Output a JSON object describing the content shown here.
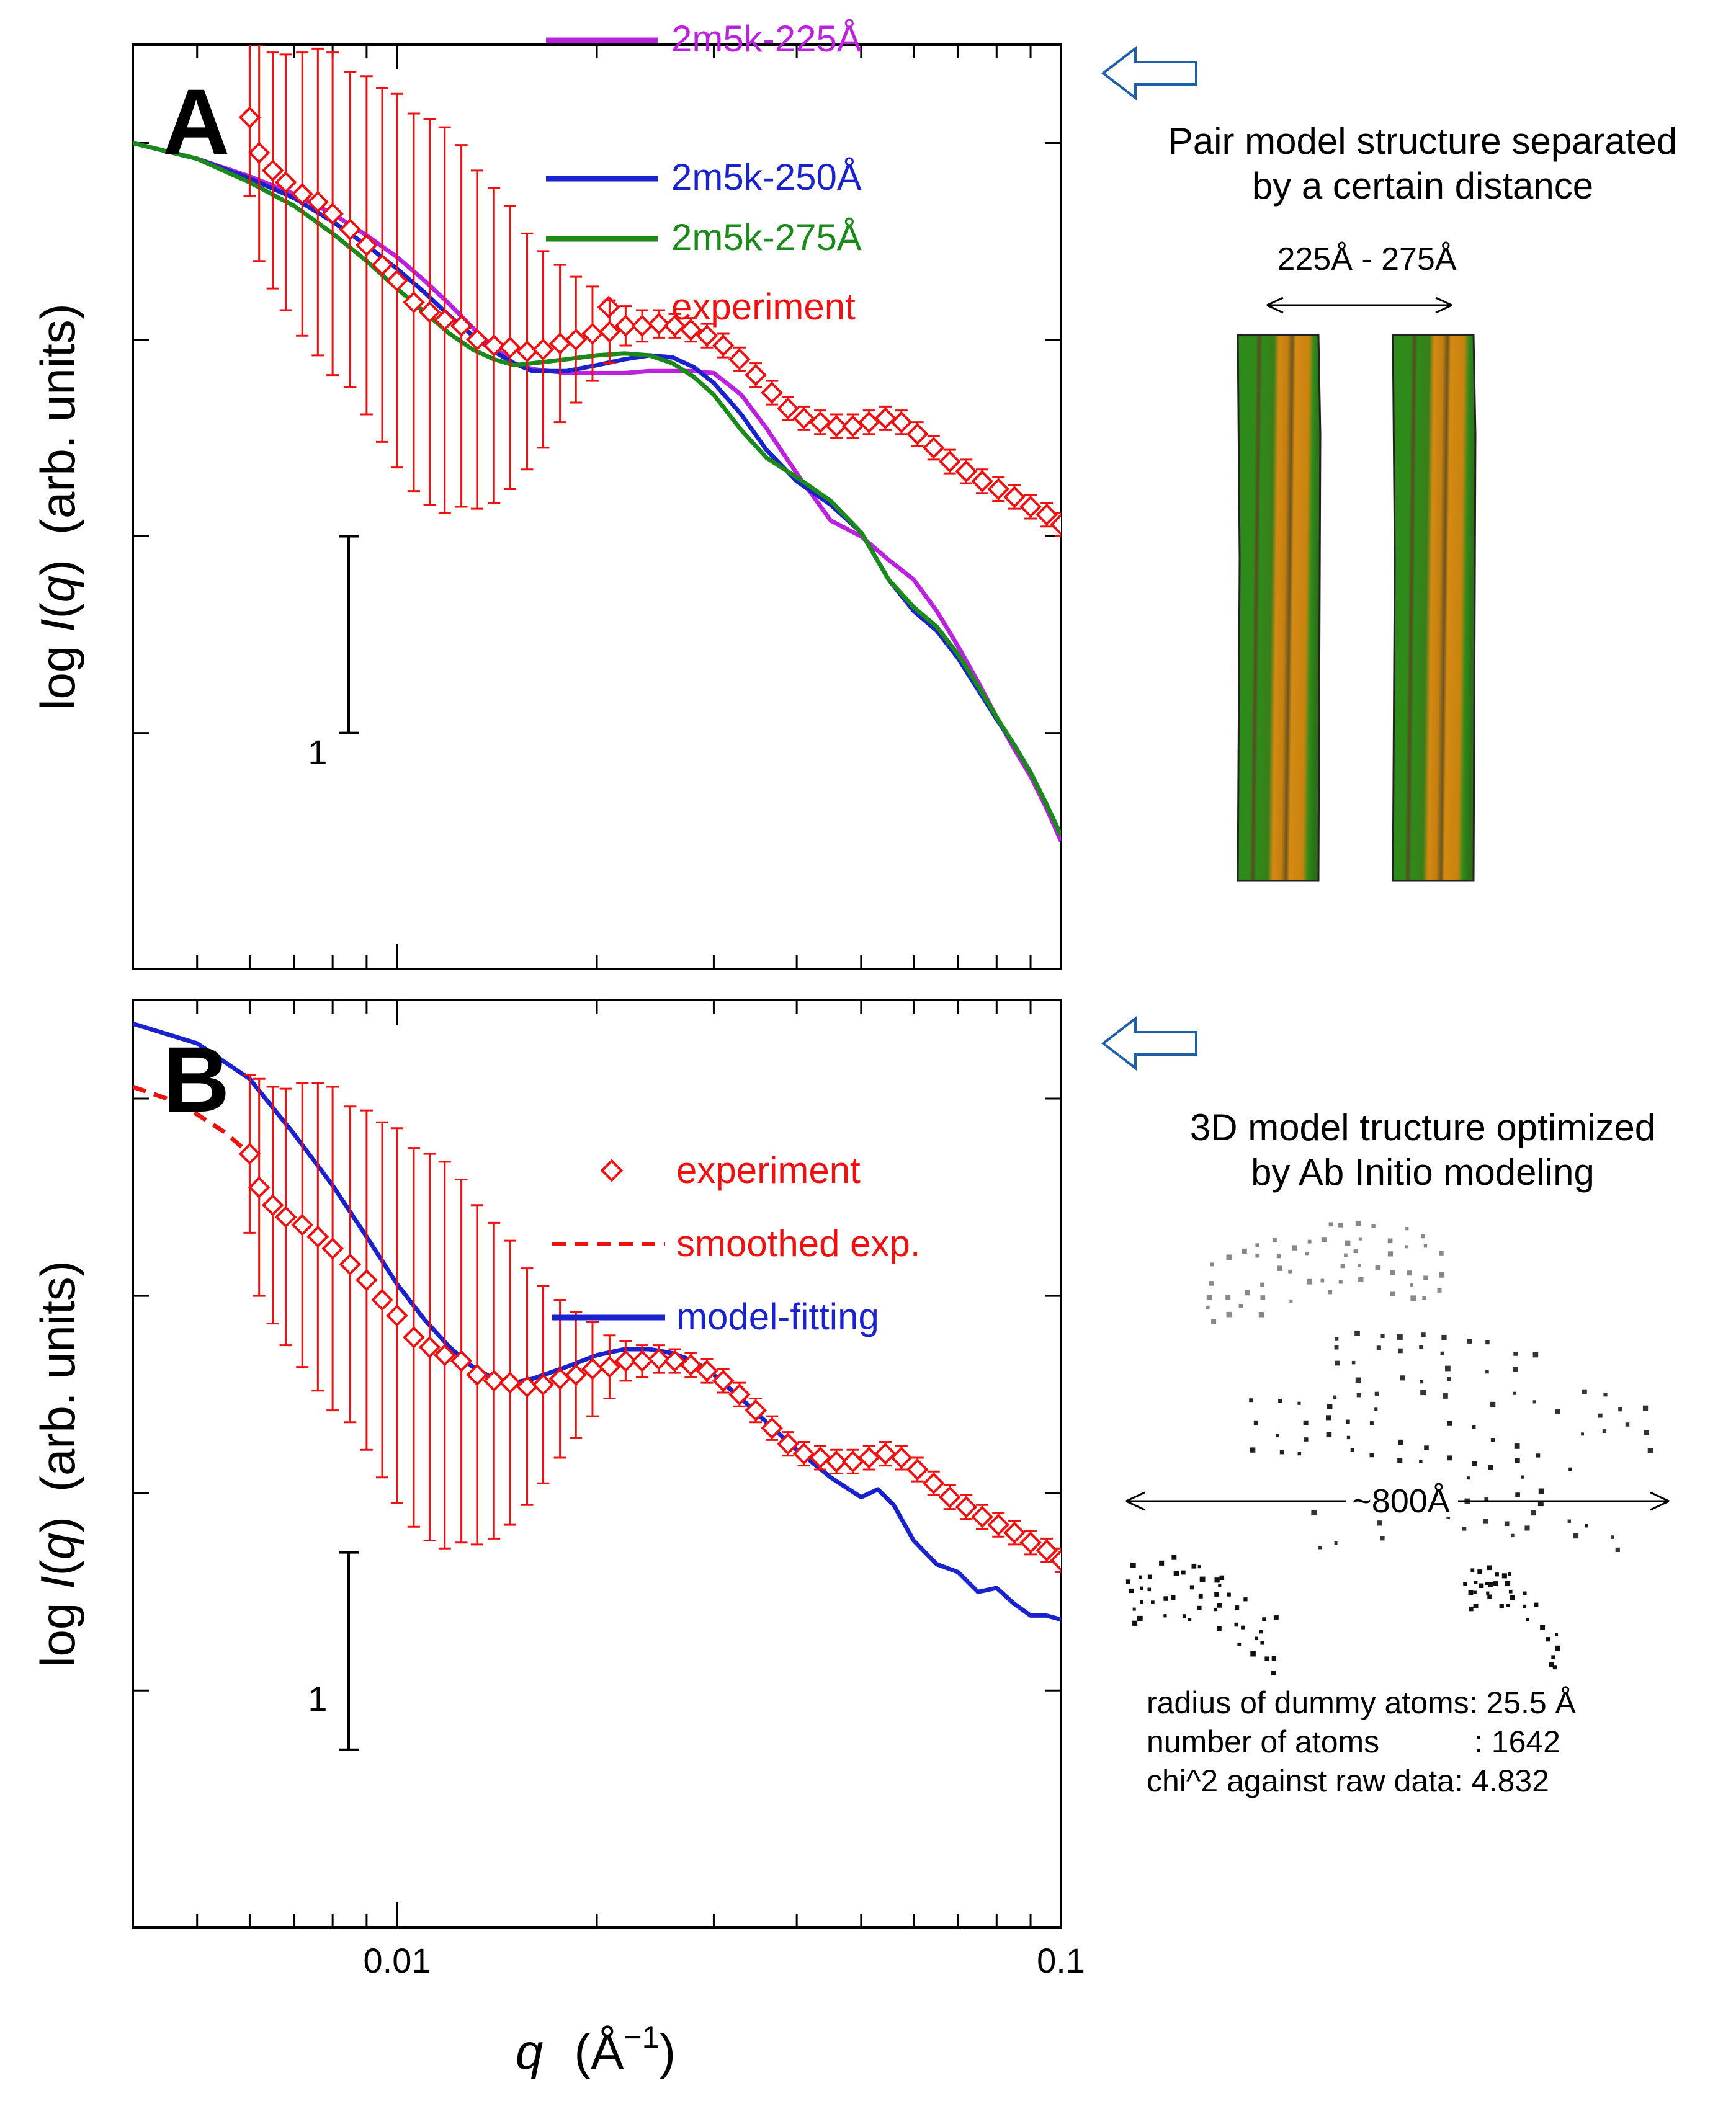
{
  "chart_data": [
    {
      "type": "line",
      "panel_label": "A",
      "xlabel_var": "q",
      "xlabel_unit": "(Å",
      "xlabel_unit_exp": "−1",
      "xlabel_unit_close": ")",
      "ylabel_prefix": "log ",
      "ylabel_var": "I",
      "ylabel_paren_open": "(",
      "ylabel_arg": "q",
      "ylabel_paren_close": ")",
      "ylabel_units": "(arb. units)",
      "xscale": "log",
      "xlim": [
        0.004,
        0.1
      ],
      "ylim": [
        -4.2,
        0.5
      ],
      "ytick_values": [
        -3,
        -2,
        -1,
        0
      ],
      "scale_bar_label": "1",
      "scale_bar": [
        -3,
        -2
      ],
      "legend": [
        "2m5k-225Å",
        "2m5k-250Å",
        "2m5k-275Å",
        "experiment"
      ],
      "series": [
        {
          "name": "2m5k-225Å",
          "color": "#bb22dd",
          "style": "solid",
          "x": [
            0.004,
            0.005,
            0.006,
            0.007,
            0.008,
            0.009,
            0.01,
            0.011,
            0.012,
            0.013,
            0.014,
            0.015,
            0.016,
            0.018,
            0.02,
            0.022,
            0.024,
            0.026,
            0.028,
            0.03,
            0.033,
            0.036,
            0.04,
            0.045,
            0.05,
            0.055,
            0.06,
            0.065,
            0.07,
            0.075,
            0.08,
            0.085,
            0.09,
            0.095,
            0.1
          ],
          "y": [
            0,
            -0.08,
            -0.17,
            -0.26,
            -0.36,
            -0.47,
            -0.58,
            -0.7,
            -0.82,
            -0.94,
            -1.04,
            -1.12,
            -1.15,
            -1.17,
            -1.17,
            -1.17,
            -1.16,
            -1.16,
            -1.16,
            -1.17,
            -1.28,
            -1.45,
            -1.68,
            -1.92,
            -2.0,
            -2.12,
            -2.22,
            -2.38,
            -2.56,
            -2.74,
            -2.92,
            -3.08,
            -3.22,
            -3.38,
            -3.55
          ]
        },
        {
          "name": "2m5k-250Å",
          "color": "#1a22cc",
          "style": "solid",
          "x": [
            0.004,
            0.005,
            0.006,
            0.007,
            0.008,
            0.009,
            0.01,
            0.011,
            0.012,
            0.013,
            0.014,
            0.015,
            0.016,
            0.018,
            0.02,
            0.022,
            0.024,
            0.026,
            0.028,
            0.03,
            0.033,
            0.036,
            0.04,
            0.045,
            0.05,
            0.055,
            0.06,
            0.065,
            0.07,
            0.075,
            0.08,
            0.085,
            0.09,
            0.095,
            0.1
          ],
          "y": [
            0,
            -0.08,
            -0.18,
            -0.28,
            -0.4,
            -0.52,
            -0.64,
            -0.76,
            -0.88,
            -0.98,
            -1.06,
            -1.12,
            -1.16,
            -1.16,
            -1.13,
            -1.1,
            -1.08,
            -1.09,
            -1.14,
            -1.22,
            -1.38,
            -1.56,
            -1.72,
            -1.84,
            -1.98,
            -2.22,
            -2.38,
            -2.48,
            -2.62,
            -2.78,
            -2.93,
            -3.06,
            -3.2,
            -3.36,
            -3.52
          ]
        },
        {
          "name": "2m5k-275Å",
          "color": "#1b8a1b",
          "style": "solid",
          "x": [
            0.004,
            0.005,
            0.006,
            0.007,
            0.008,
            0.009,
            0.01,
            0.011,
            0.012,
            0.013,
            0.014,
            0.015,
            0.016,
            0.018,
            0.02,
            0.022,
            0.024,
            0.026,
            0.028,
            0.03,
            0.033,
            0.036,
            0.04,
            0.045,
            0.05,
            0.055,
            0.06,
            0.065,
            0.07,
            0.075,
            0.08,
            0.085,
            0.09,
            0.095,
            0.1
          ],
          "y": [
            0,
            -0.08,
            -0.2,
            -0.32,
            -0.46,
            -0.6,
            -0.74,
            -0.86,
            -0.97,
            -1.05,
            -1.1,
            -1.13,
            -1.12,
            -1.1,
            -1.08,
            -1.07,
            -1.08,
            -1.12,
            -1.19,
            -1.28,
            -1.46,
            -1.6,
            -1.7,
            -1.82,
            -1.98,
            -2.22,
            -2.36,
            -2.46,
            -2.6,
            -2.76,
            -2.92,
            -3.06,
            -3.2,
            -3.36,
            -3.52
          ]
        },
        {
          "name": "experiment",
          "color": "#ee1111",
          "style": "markers",
          "x": [
            0.006,
            0.0062,
            0.0065,
            0.0068,
            0.0072,
            0.0076,
            0.008,
            0.0085,
            0.009,
            0.0095,
            0.01,
            0.0106,
            0.0112,
            0.0118,
            0.0125,
            0.0132,
            0.014,
            0.0148,
            0.0157,
            0.0166,
            0.0176,
            0.0186,
            0.0197,
            0.0209,
            0.0221,
            0.0234,
            0.0248,
            0.0262,
            0.0277,
            0.0293,
            0.031,
            0.0328,
            0.0347,
            0.0367,
            0.0388,
            0.041,
            0.0434,
            0.0459,
            0.0486,
            0.0514,
            0.0544,
            0.0575,
            0.0608,
            0.0643,
            0.068,
            0.072,
            0.0761,
            0.0805,
            0.0851,
            0.09,
            0.0952,
            0.1
          ],
          "y": [
            0.13,
            -0.05,
            -0.14,
            -0.2,
            -0.26,
            -0.3,
            -0.36,
            -0.44,
            -0.52,
            -0.62,
            -0.7,
            -0.81,
            -0.86,
            -0.9,
            -0.93,
            -1.0,
            -1.03,
            -1.04,
            -1.06,
            -1.05,
            -1.02,
            -1.0,
            -0.97,
            -0.96,
            -0.93,
            -0.93,
            -0.92,
            -0.93,
            -0.95,
            -0.98,
            -1.03,
            -1.1,
            -1.18,
            -1.27,
            -1.35,
            -1.4,
            -1.42,
            -1.44,
            -1.44,
            -1.42,
            -1.4,
            -1.42,
            -1.48,
            -1.55,
            -1.62,
            -1.67,
            -1.72,
            -1.76,
            -1.8,
            -1.85,
            -1.89,
            -1.94
          ],
          "yerr": [
            0.4,
            0.55,
            0.6,
            0.65,
            0.72,
            0.78,
            0.82,
            0.8,
            0.86,
            0.9,
            0.95,
            0.96,
            0.98,
            0.98,
            0.92,
            0.86,
            0.8,
            0.72,
            0.6,
            0.5,
            0.4,
            0.32,
            0.24,
            0.16,
            0.1,
            0.08,
            0.07,
            0.06,
            0.06,
            0.06,
            0.06,
            0.06,
            0.06,
            0.06,
            0.06,
            0.06,
            0.06,
            0.06,
            0.06,
            0.06,
            0.06,
            0.06,
            0.06,
            0.06,
            0.06,
            0.06,
            0.06,
            0.06,
            0.06,
            0.06,
            0.06,
            0.06
          ]
        }
      ]
    },
    {
      "type": "line",
      "panel_label": "B",
      "xlabel_var": "q",
      "xlabel_unit": "(Å",
      "xlabel_unit_exp": "−1",
      "xlabel_unit_close": ")",
      "ylabel_prefix": "log ",
      "ylabel_var": "I",
      "ylabel_paren_open": "(",
      "ylabel_arg": "q",
      "ylabel_paren_close": ")",
      "ylabel_units": "(arb. units)",
      "xscale": "log",
      "xlim": [
        0.004,
        0.1
      ],
      "ylim": [
        -4.2,
        0.5
      ],
      "ytick_values": [
        -3,
        -2,
        -1,
        0
      ],
      "scale_bar_label": "1",
      "scale_bar": [
        -3.3,
        -2.3
      ],
      "xticks": [
        0.01,
        0.1
      ],
      "xtick_labels": [
        "0.01",
        "0.1"
      ],
      "legend": [
        "experiment",
        "smoothed exp.",
        "model-fitting"
      ],
      "series": [
        {
          "name": "experiment",
          "color": "#ee1111",
          "style": "markers",
          "x": [
            0.006,
            0.0062,
            0.0065,
            0.0068,
            0.0072,
            0.0076,
            0.008,
            0.0085,
            0.009,
            0.0095,
            0.01,
            0.0106,
            0.0112,
            0.0118,
            0.0125,
            0.0132,
            0.014,
            0.0148,
            0.0157,
            0.0166,
            0.0176,
            0.0186,
            0.0197,
            0.0209,
            0.0221,
            0.0234,
            0.0248,
            0.0262,
            0.0277,
            0.0293,
            0.031,
            0.0328,
            0.0347,
            0.0367,
            0.0388,
            0.041,
            0.0434,
            0.0459,
            0.0486,
            0.0514,
            0.0544,
            0.0575,
            0.0608,
            0.0643,
            0.068,
            0.072,
            0.0761,
            0.0805,
            0.0851,
            0.09,
            0.0952,
            0.1
          ],
          "y": [
            -0.28,
            -0.45,
            -0.54,
            -0.6,
            -0.64,
            -0.7,
            -0.76,
            -0.84,
            -0.92,
            -1.02,
            -1.1,
            -1.21,
            -1.26,
            -1.3,
            -1.33,
            -1.4,
            -1.43,
            -1.44,
            -1.46,
            -1.45,
            -1.42,
            -1.4,
            -1.37,
            -1.36,
            -1.33,
            -1.33,
            -1.32,
            -1.33,
            -1.35,
            -1.38,
            -1.43,
            -1.5,
            -1.58,
            -1.67,
            -1.75,
            -1.8,
            -1.82,
            -1.84,
            -1.84,
            -1.82,
            -1.8,
            -1.82,
            -1.88,
            -1.95,
            -2.02,
            -2.07,
            -2.12,
            -2.16,
            -2.2,
            -2.25,
            -2.29,
            -2.34
          ],
          "yerr": [
            0.4,
            0.55,
            0.6,
            0.65,
            0.72,
            0.78,
            0.82,
            0.8,
            0.86,
            0.9,
            0.95,
            0.96,
            0.98,
            0.98,
            0.92,
            0.86,
            0.8,
            0.72,
            0.6,
            0.5,
            0.4,
            0.32,
            0.24,
            0.16,
            0.1,
            0.08,
            0.07,
            0.06,
            0.06,
            0.06,
            0.06,
            0.06,
            0.06,
            0.06,
            0.06,
            0.06,
            0.06,
            0.06,
            0.06,
            0.06,
            0.06,
            0.06,
            0.06,
            0.06,
            0.06,
            0.06,
            0.06,
            0.06,
            0.06,
            0.06,
            0.06,
            0.06
          ]
        },
        {
          "name": "smoothed exp.",
          "color": "#ee1111",
          "style": "dashed",
          "x": [
            0.004,
            0.0045,
            0.005,
            0.0055,
            0.006
          ],
          "y": [
            0.06,
            0.0,
            -0.08,
            -0.17,
            -0.28
          ]
        },
        {
          "name": "model-fitting",
          "color": "#1a22cc",
          "style": "solid",
          "x": [
            0.004,
            0.005,
            0.006,
            0.007,
            0.008,
            0.009,
            0.01,
            0.011,
            0.012,
            0.013,
            0.014,
            0.015,
            0.016,
            0.018,
            0.02,
            0.022,
            0.024,
            0.026,
            0.028,
            0.03,
            0.033,
            0.036,
            0.04,
            0.045,
            0.05,
            0.053,
            0.056,
            0.06,
            0.065,
            0.07,
            0.075,
            0.08,
            0.085,
            0.09,
            0.095,
            0.1
          ],
          "y": [
            0.38,
            0.28,
            0.1,
            -0.18,
            -0.44,
            -0.7,
            -0.94,
            -1.12,
            -1.26,
            -1.36,
            -1.42,
            -1.44,
            -1.42,
            -1.36,
            -1.3,
            -1.27,
            -1.27,
            -1.29,
            -1.33,
            -1.4,
            -1.52,
            -1.64,
            -1.78,
            -1.92,
            -2.02,
            -1.98,
            -2.06,
            -2.24,
            -2.36,
            -2.4,
            -2.5,
            -2.48,
            -2.56,
            -2.62,
            -2.62,
            -2.64
          ]
        }
      ]
    }
  ],
  "side": {
    "a_caption_line1": "Pair model structure separated",
    "a_caption_line2": "by a certain distance",
    "a_distance": "225Å - 275Å",
    "b_caption_line1": "3D model tructure optimized",
    "b_caption_line2": "by Ab Initio modeling",
    "b_width": "~800Å",
    "stat_line1": "radius of dummy atoms: 25.5 Å",
    "stat_line2": "number of atoms           : 1642",
    "stat_line3": "chi^2 against raw data: 4.832"
  },
  "colors": {
    "arrow_outline": "#1f5fa8",
    "green_stripe": "#2e8b1a",
    "orange_stripe": "#d48a12"
  }
}
